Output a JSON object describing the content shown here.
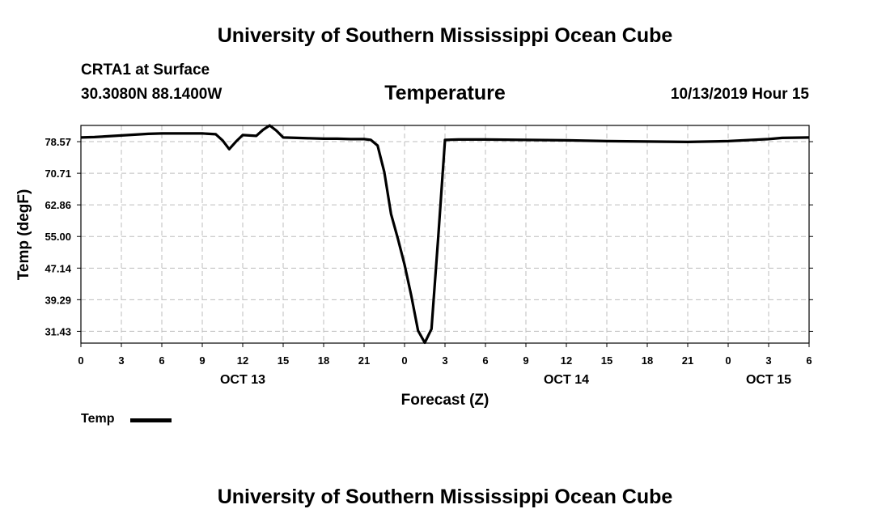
{
  "header": {
    "title": "University of Southern Mississippi Ocean Cube",
    "station": "CRTA1 at Surface",
    "coords": "30.3080N 88.1400W",
    "datetime": "10/13/2019 Hour 15",
    "footer_title": "University of Southern Mississippi Ocean Cube"
  },
  "chart_data": {
    "type": "line",
    "title": "Temperature",
    "xlabel": "Forecast (Z)",
    "ylabel": "Temp (degF)",
    "x_unit": "hours from 2019-10-13 00Z",
    "xlim": [
      0,
      54
    ],
    "ylim": [
      28.5,
      82.6
    ],
    "grid": true,
    "legend_position": "bottom-left",
    "y_ticks": [
      "31.43",
      "39.29",
      "47.14",
      "55.00",
      "62.86",
      "70.71",
      "78.57"
    ],
    "x_tick_labels": [
      "0",
      "3",
      "6",
      "9",
      "12",
      "15",
      "18",
      "21",
      "0",
      "3",
      "6",
      "9",
      "12",
      "15",
      "18",
      "21",
      "0",
      "3",
      "6"
    ],
    "date_labels": [
      {
        "label": "OCT 13",
        "hour": 12
      },
      {
        "label": "OCT 14",
        "hour": 36
      },
      {
        "label": "OCT 15",
        "hour": 51
      }
    ],
    "series": [
      {
        "name": "Temp",
        "color": "#000000",
        "points": [
          [
            0,
            79.6
          ],
          [
            1,
            79.7
          ],
          [
            2,
            79.9
          ],
          [
            3,
            80.1
          ],
          [
            4,
            80.3
          ],
          [
            5,
            80.5
          ],
          [
            6,
            80.6
          ],
          [
            7,
            80.6
          ],
          [
            8,
            80.6
          ],
          [
            9,
            80.6
          ],
          [
            10,
            80.4
          ],
          [
            10.5,
            78.9
          ],
          [
            11,
            76.7
          ],
          [
            11.5,
            78.6
          ],
          [
            12,
            80.2
          ],
          [
            13,
            80.0
          ],
          [
            13.5,
            81.5
          ],
          [
            14,
            82.6
          ],
          [
            14.5,
            81.3
          ],
          [
            15,
            79.6
          ],
          [
            16,
            79.5
          ],
          [
            17,
            79.4
          ],
          [
            18,
            79.3
          ],
          [
            19,
            79.3
          ],
          [
            20,
            79.2
          ],
          [
            21,
            79.2
          ],
          [
            21.5,
            79.0
          ],
          [
            22,
            77.6
          ],
          [
            22.5,
            71.0
          ],
          [
            23,
            60.6
          ],
          [
            23.5,
            54.5
          ],
          [
            24,
            48.0
          ],
          [
            24.5,
            40.3
          ],
          [
            25,
            31.6
          ],
          [
            25.5,
            28.6
          ],
          [
            26,
            32.0
          ],
          [
            26.5,
            55.0
          ],
          [
            27,
            79.0
          ],
          [
            28,
            79.1
          ],
          [
            30,
            79.1
          ],
          [
            33,
            79.0
          ],
          [
            36,
            78.9
          ],
          [
            39,
            78.7
          ],
          [
            42,
            78.6
          ],
          [
            45,
            78.5
          ],
          [
            48,
            78.7
          ],
          [
            51,
            79.2
          ],
          [
            52,
            79.5
          ],
          [
            54,
            79.6
          ]
        ]
      }
    ]
  }
}
